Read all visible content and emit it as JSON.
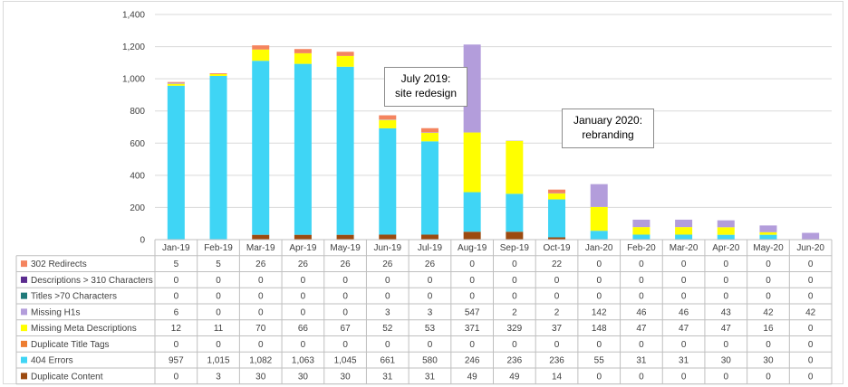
{
  "chart_data": {
    "type": "bar",
    "stacked": true,
    "categories": [
      "Jan-19",
      "Feb-19",
      "Mar-19",
      "Apr-19",
      "May-19",
      "Jun-19",
      "Jul-19",
      "Aug-19",
      "Sep-19",
      "Oct-19",
      "Jan-20",
      "Feb-20",
      "Mar-20",
      "Apr-20",
      "May-20",
      "Jun-20"
    ],
    "ylim": [
      0,
      1400
    ],
    "yticks": [
      "0",
      "200",
      "400",
      "600",
      "800",
      "1,000",
      "1,200",
      "1,400"
    ],
    "grid": true,
    "legend_placement": "data-table-left",
    "series": [
      {
        "name": "302 Redirects",
        "color": "#f4845f",
        "values": [
          5,
          5,
          26,
          26,
          26,
          26,
          26,
          0,
          0,
          22,
          0,
          0,
          0,
          0,
          0,
          0
        ],
        "labels": [
          "5",
          "5",
          "26",
          "26",
          "26",
          "26",
          "26",
          "0",
          "0",
          "22",
          "0",
          "0",
          "0",
          "0",
          "0",
          "0"
        ]
      },
      {
        "name": "Descriptions > 310 Characters",
        "color": "#5b2c8f",
        "values": [
          0,
          0,
          0,
          0,
          0,
          0,
          0,
          0,
          0,
          0,
          0,
          0,
          0,
          0,
          0,
          0
        ],
        "labels": [
          "0",
          "0",
          "0",
          "0",
          "0",
          "0",
          "0",
          "0",
          "0",
          "0",
          "0",
          "0",
          "0",
          "0",
          "0",
          "0"
        ]
      },
      {
        "name": "Titles >70 Characters",
        "color": "#1f7a7a",
        "values": [
          0,
          0,
          0,
          0,
          0,
          0,
          0,
          0,
          0,
          0,
          0,
          0,
          0,
          0,
          0,
          0
        ],
        "labels": [
          "0",
          "0",
          "0",
          "0",
          "0",
          "0",
          "0",
          "0",
          "0",
          "0",
          "0",
          "0",
          "0",
          "0",
          "0",
          "0"
        ]
      },
      {
        "name": "Missing H1s",
        "color": "#b39ddb",
        "values": [
          6,
          0,
          0,
          0,
          0,
          3,
          3,
          547,
          2,
          2,
          142,
          46,
          46,
          43,
          42,
          42
        ],
        "labels": [
          "6",
          "0",
          "0",
          "0",
          "0",
          "3",
          "3",
          "547",
          "2",
          "2",
          "142",
          "46",
          "46",
          "43",
          "42",
          "42"
        ]
      },
      {
        "name": "Missing Meta Descriptions",
        "color": "#ffff00",
        "values": [
          12,
          11,
          70,
          66,
          67,
          52,
          53,
          371,
          329,
          37,
          148,
          47,
          47,
          47,
          16,
          0
        ],
        "labels": [
          "12",
          "11",
          "70",
          "66",
          "67",
          "52",
          "53",
          "371",
          "329",
          "37",
          "148",
          "47",
          "47",
          "47",
          "16",
          "0"
        ]
      },
      {
        "name": "Duplicate Title Tags",
        "color": "#ed7d31",
        "values": [
          0,
          0,
          0,
          0,
          0,
          0,
          0,
          0,
          0,
          0,
          0,
          0,
          0,
          0,
          0,
          0
        ],
        "labels": [
          "0",
          "0",
          "0",
          "0",
          "0",
          "0",
          "0",
          "0",
          "0",
          "0",
          "0",
          "0",
          "0",
          "0",
          "0",
          "0"
        ]
      },
      {
        "name": "404 Errors",
        "color": "#3fd5f5",
        "values": [
          957,
          1015,
          1082,
          1063,
          1045,
          661,
          580,
          246,
          236,
          236,
          55,
          31,
          31,
          30,
          30,
          0
        ],
        "labels": [
          "957",
          "1,015",
          "1,082",
          "1,063",
          "1,045",
          "661",
          "580",
          "246",
          "236",
          "236",
          "55",
          "31",
          "31",
          "30",
          "30",
          "0"
        ]
      },
      {
        "name": "Duplicate Content",
        "color": "#9c4a10",
        "values": [
          0,
          3,
          30,
          30,
          30,
          31,
          31,
          49,
          49,
          14,
          0,
          0,
          0,
          0,
          0,
          0
        ],
        "labels": [
          "0",
          "3",
          "30",
          "30",
          "30",
          "31",
          "31",
          "49",
          "49",
          "14",
          "0",
          "0",
          "0",
          "0",
          "0",
          "0"
        ]
      }
    ],
    "annotations": [
      {
        "text": "July 2019: site redesign"
      },
      {
        "text": "January 2020: rebranding"
      }
    ]
  }
}
